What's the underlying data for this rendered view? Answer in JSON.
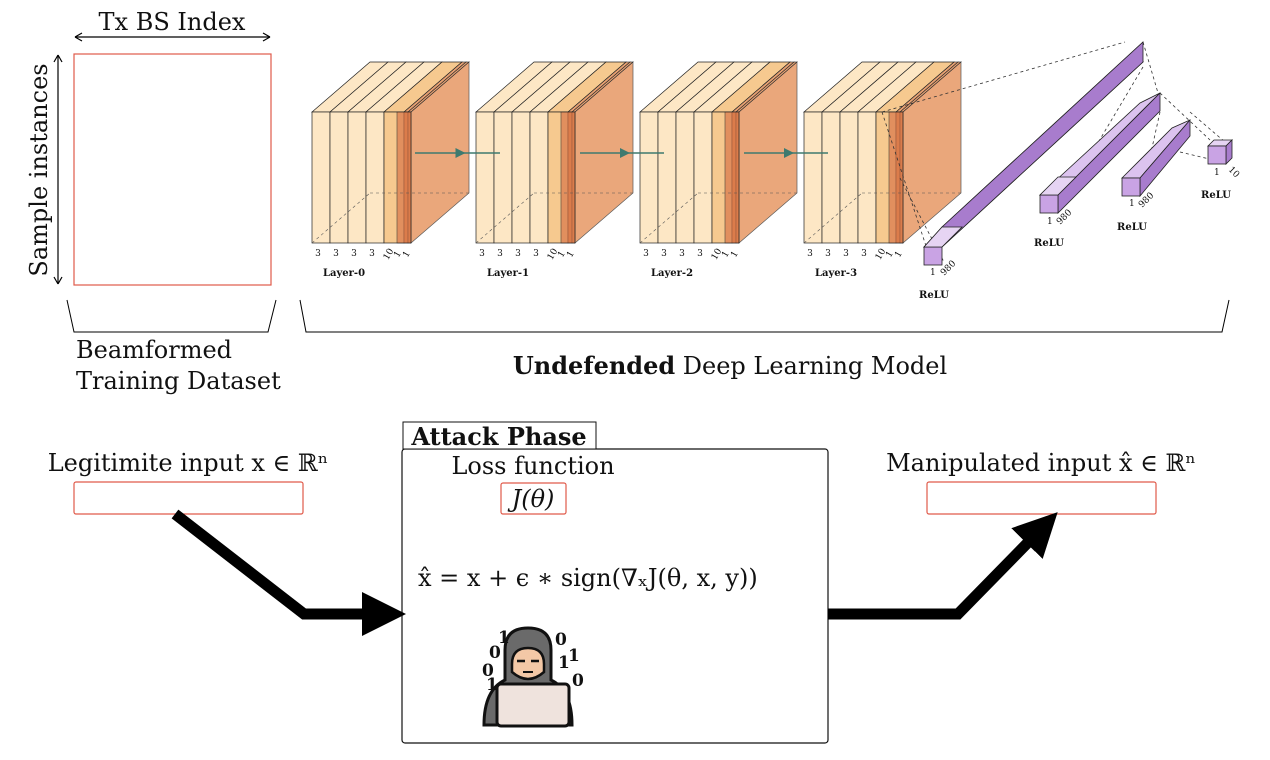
{
  "dataset": {
    "x_axis_label": "Tx BS Index",
    "y_axis_label": "Sample instances",
    "caption_line1": "Beamformed",
    "caption_line2": "Training Dataset"
  },
  "model": {
    "layers": [
      {
        "label": "Layer-0",
        "dims": [
          "3",
          "3",
          "3",
          "3",
          "10",
          "1",
          "1"
        ]
      },
      {
        "label": "Layer-1",
        "dims": [
          "3",
          "3",
          "3",
          "3",
          "10",
          "1",
          "1"
        ]
      },
      {
        "label": "Layer-2",
        "dims": [
          "3",
          "3",
          "3",
          "3",
          "10",
          "1",
          "1"
        ]
      },
      {
        "label": "Layer-3",
        "dims": [
          "3",
          "3",
          "3",
          "3",
          "10",
          "1",
          "1"
        ]
      }
    ],
    "dense_layers": [
      {
        "label": "ReLU",
        "dim_a": "1",
        "dim_b": "980"
      },
      {
        "label": "ReLU",
        "dim_a": "1",
        "dim_b": "980"
      },
      {
        "label": "ReLU",
        "dim_a": "1",
        "dim_b": "980"
      },
      {
        "label": "ReLU",
        "dim_a": "1",
        "dim_b": "10"
      }
    ],
    "caption_bold": "Undefended",
    "caption_rest": " Deep Learning Model"
  },
  "attack": {
    "title": "Attack Phase",
    "loss_label": "Loss function",
    "loss_symbol": "J(θ)",
    "formula": "x̂ = x + ϵ ∗ sign(∇ₓJ(θ, x, y))",
    "input_label": "Legitimite input x ∈ ℝⁿ",
    "output_label": "Manipulated input x̂ ∈ ℝⁿ",
    "hacker_bits": [
      "0",
      "1",
      "0",
      "1",
      "0",
      "1",
      "1",
      "0"
    ]
  },
  "colors": {
    "box_red": "#e05a4a",
    "slab_light": "#fde7c5",
    "slab_mid": "#f6c98f",
    "slab_orange": "#e38a4f",
    "dense_purple": "#c9a3e4",
    "arrow_teal": "#3e7a6f"
  }
}
